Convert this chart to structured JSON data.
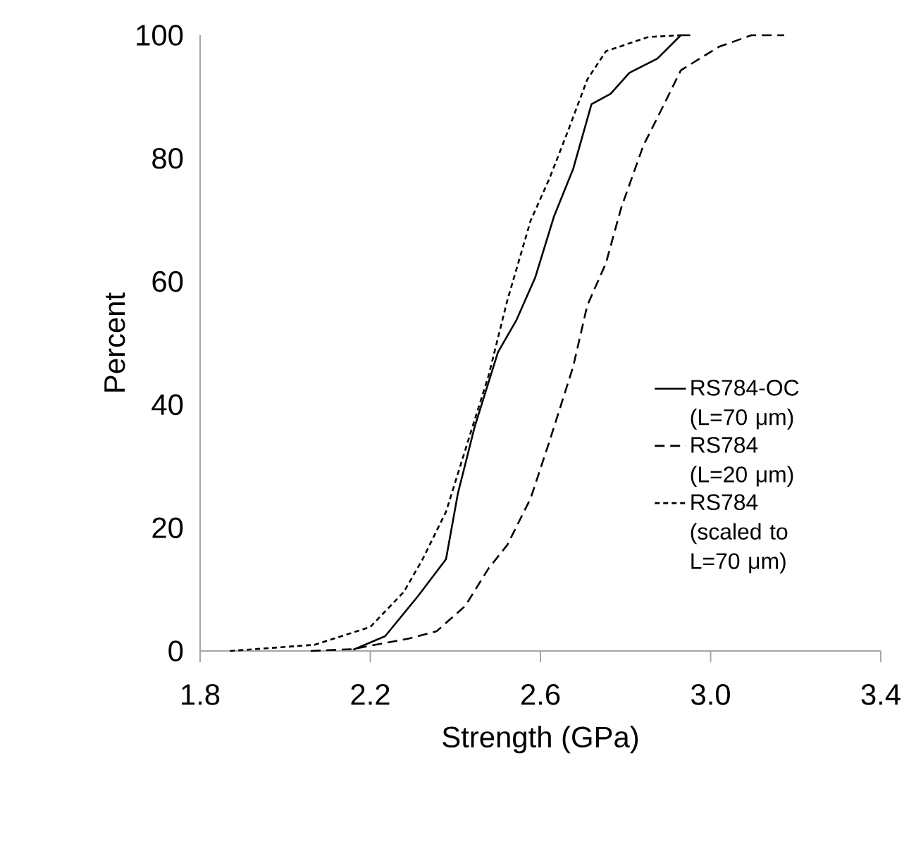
{
  "chart_data": {
    "type": "line",
    "xlabel": "Strength (GPa)",
    "ylabel": "Percent",
    "xlim": [
      1.8,
      3.4
    ],
    "xticks": [
      1.8,
      2.2,
      2.6,
      {
        "value": 3.0,
        "label": "3.0"
      },
      3.4
    ],
    "ylim": [
      0,
      100
    ],
    "yticks": [
      0,
      20,
      40,
      60,
      80,
      100
    ],
    "grid": false,
    "legend": "right",
    "marker": "none",
    "series": [
      {
        "name": "RS784-OC (L=70 μm)",
        "color": "#000000",
        "line_style": "solid",
        "x": [
          2.16,
          2.235,
          2.312,
          2.378,
          2.406,
          2.445,
          2.5,
          2.544,
          2.588,
          2.632,
          2.677,
          2.72,
          2.765,
          2.809,
          2.875,
          2.93,
          2.952
        ],
        "values": [
          0.2,
          2.4,
          8.9,
          14.9,
          25.6,
          36.3,
          48.5,
          53.8,
          60.7,
          70.6,
          78.3,
          88.8,
          90.5,
          93.9,
          96.2,
          100,
          100
        ]
      },
      {
        "name": "RS784 (L=20 μm)",
        "color": "#000000",
        "line_style": "dashed",
        "x": [
          2.06,
          2.158,
          2.29,
          2.356,
          2.423,
          2.478,
          2.522,
          2.577,
          2.621,
          2.677,
          2.71,
          2.754,
          2.79,
          2.842,
          2.875,
          2.93,
          3.019,
          3.096,
          3.173
        ],
        "values": [
          0,
          0.3,
          2,
          3.2,
          7.3,
          13.4,
          17.2,
          24.8,
          34,
          46.2,
          56.1,
          63,
          72,
          82.1,
          86.6,
          94.3,
          98.1,
          100,
          100
        ]
      },
      {
        "name": "RS784 (scaled to L=70 μm)",
        "color": "#000000",
        "line_style": "dotted",
        "x": [
          1.87,
          2.069,
          2.2,
          2.279,
          2.323,
          2.378,
          2.433,
          2.478,
          2.522,
          2.577,
          2.621,
          2.665,
          2.71,
          2.754,
          2.853,
          2.93
        ],
        "values": [
          0,
          1,
          3.9,
          9.6,
          14.9,
          22.6,
          34.8,
          44.7,
          56.9,
          69.9,
          76.7,
          84.5,
          92.8,
          97.4,
          99.7,
          100
        ]
      }
    ]
  }
}
